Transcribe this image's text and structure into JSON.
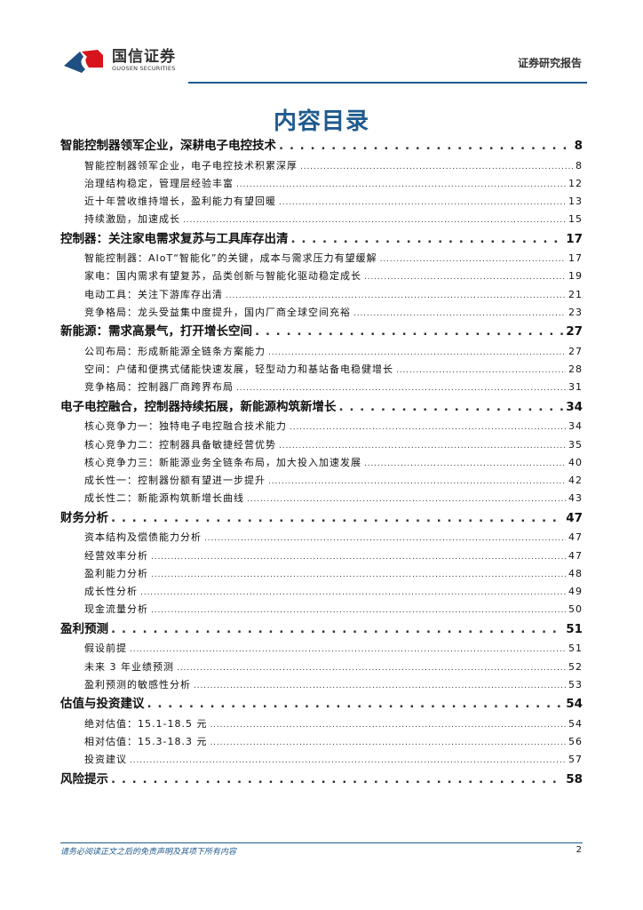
{
  "header": {
    "logo_cn": "国信证券",
    "logo_en": "GUOSEN SECURITIES",
    "report_type": "证券研究报告"
  },
  "title": "内容目录",
  "toc": [
    {
      "label": "智能控制器领军企业，深耕电子电控技术",
      "page": "8",
      "children": [
        {
          "label": "智能控制器领军企业，电子电控技术积累深厚",
          "page": "8"
        },
        {
          "label": "治理结构稳定，管理层经验丰富",
          "page": "12"
        },
        {
          "label": "近十年营收维持增长，盈利能力有望回暖",
          "page": "13"
        },
        {
          "label": "持续激励，加速成长",
          "page": "15"
        }
      ]
    },
    {
      "label": "控制器：关注家电需求复苏与工具库存出清",
      "page": "17",
      "children": [
        {
          "label": "智能控制器：AIoT“智能化”的关键，成本与需求压力有望缓解",
          "page": "17"
        },
        {
          "label": "家电：国内需求有望复苏，品类创新与智能化驱动稳定成长",
          "page": "19"
        },
        {
          "label": "电动工具：关注下游库存出清",
          "page": "21"
        },
        {
          "label": "竞争格局：龙头受益集中度提升，国内厂商全球空间充裕",
          "page": "23"
        }
      ]
    },
    {
      "label": "新能源：需求高景气，打开增长空间",
      "page": "27",
      "children": [
        {
          "label": "公司布局：形成新能源全链条方案能力",
          "page": "27"
        },
        {
          "label": "空间：户储和便携式储能快速发展，轻型动力和基站备电稳健增长",
          "page": "28"
        },
        {
          "label": "竞争格局：控制器厂商跨界布局",
          "page": "31"
        }
      ]
    },
    {
      "label": "电子电控融合，控制器持续拓展，新能源构筑新增长",
      "page": "34",
      "children": [
        {
          "label": "核心竞争力一：独特电子电控融合技术能力",
          "page": "34"
        },
        {
          "label": "核心竞争力二：控制器具备敏捷经营优势",
          "page": "35"
        },
        {
          "label": "核心竞争力三：新能源业务全链条布局，加大投入加速发展",
          "page": "40"
        },
        {
          "label": "成长性一：控制器份额有望进一步提升",
          "page": "42"
        },
        {
          "label": "成长性二：新能源构筑新增长曲线",
          "page": "43"
        }
      ]
    },
    {
      "label": "财务分析",
      "page": "47",
      "children": [
        {
          "label": "资本结构及偿债能力分析",
          "page": "47"
        },
        {
          "label": "经营效率分析",
          "page": "47"
        },
        {
          "label": "盈利能力分析",
          "page": "48"
        },
        {
          "label": "成长性分析",
          "page": "49"
        },
        {
          "label": "现金流量分析",
          "page": "50"
        }
      ]
    },
    {
      "label": "盈利预测",
      "page": "51",
      "children": [
        {
          "label": "假设前提",
          "page": "51"
        },
        {
          "label": "未来 3 年业绩预测",
          "page": "52"
        },
        {
          "label": "盈利预测的敏感性分析",
          "page": "53"
        }
      ]
    },
    {
      "label": "估值与投资建议",
      "page": "54",
      "children": [
        {
          "label": "绝对估值：15.1-18.5 元",
          "page": "54"
        },
        {
          "label": "相对估值：15.3-18.3 元",
          "page": "56"
        },
        {
          "label": "投资建议",
          "page": "57"
        }
      ]
    },
    {
      "label": "风险提示",
      "page": "58",
      "children": []
    }
  ],
  "footer": {
    "disclaimer": "请务必阅读正文之后的免责声明及其项下所有内容",
    "page_number": "2"
  },
  "colors": {
    "brand_blue": "#1f5a8e",
    "brand_red": "#d7141c"
  }
}
